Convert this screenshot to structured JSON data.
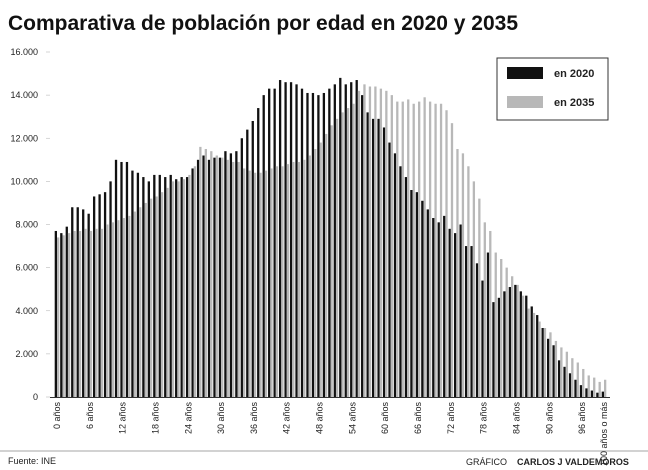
{
  "chart_data": {
    "type": "bar",
    "title": "Comparativa de población por edad en 2020 y 2035",
    "categories": [
      "0 años",
      null,
      null,
      null,
      null,
      null,
      "6 años",
      null,
      null,
      null,
      null,
      null,
      "12 años",
      null,
      null,
      null,
      null,
      null,
      "18 años",
      null,
      null,
      null,
      null,
      null,
      "24 años",
      null,
      null,
      null,
      null,
      null,
      "30 años",
      null,
      null,
      null,
      null,
      null,
      "36 años",
      null,
      null,
      null,
      null,
      null,
      "42 años",
      null,
      null,
      null,
      null,
      null,
      "48 años",
      null,
      null,
      null,
      null,
      null,
      "54 años",
      null,
      null,
      null,
      null,
      null,
      "60 años",
      null,
      null,
      null,
      null,
      null,
      "66 años",
      null,
      null,
      null,
      null,
      null,
      "72 años",
      null,
      null,
      null,
      null,
      null,
      "78 años",
      null,
      null,
      null,
      null,
      null,
      "84 años",
      null,
      null,
      null,
      null,
      null,
      "90 años",
      null,
      null,
      null,
      null,
      null,
      "96 años",
      null,
      null,
      null,
      "100 años o más"
    ],
    "series": [
      {
        "name": "en 2020",
        "color": "#111111",
        "values": [
          7700,
          7600,
          7900,
          8800,
          8800,
          8700,
          8500,
          9300,
          9400,
          9500,
          10000,
          11000,
          10900,
          10900,
          10500,
          10400,
          10200,
          10000,
          10300,
          10300,
          10200,
          10300,
          10100,
          10200,
          10200,
          10600,
          11000,
          11200,
          11000,
          11100,
          11100,
          11400,
          11300,
          11400,
          12000,
          12400,
          12800,
          13400,
          14000,
          14300,
          14300,
          14700,
          14600,
          14600,
          14500,
          14300,
          14100,
          14100,
          14000,
          14100,
          14300,
          14500,
          14800,
          14500,
          14600,
          14700,
          14000,
          13200,
          12900,
          12900,
          12500,
          11800,
          11300,
          10700,
          10200,
          9600,
          9500,
          9100,
          8700,
          8300,
          8100,
          8400,
          7800,
          7600,
          8000,
          7000,
          7000,
          6200,
          5400,
          6700,
          4400,
          4600,
          4900,
          5100,
          5200,
          4900,
          4700,
          4200,
          3800,
          3200,
          2700,
          2400,
          1700,
          1400,
          1100,
          800,
          550,
          400,
          300,
          200,
          250
        ]
      },
      {
        "name": "en 2035",
        "color": "#b8b8b8",
        "values": [
          7400,
          7500,
          7600,
          7700,
          7700,
          7800,
          7700,
          7800,
          7800,
          8000,
          8100,
          8200,
          8300,
          8400,
          8600,
          8800,
          9000,
          9200,
          9300,
          9500,
          9700,
          10000,
          10000,
          10100,
          10300,
          10700,
          11600,
          11500,
          11400,
          11200,
          11100,
          11000,
          10900,
          10900,
          10600,
          10500,
          10400,
          10400,
          10500,
          10600,
          10700,
          10700,
          10800,
          10900,
          10900,
          11000,
          11200,
          11500,
          11800,
          12200,
          12600,
          12900,
          13200,
          13400,
          13600,
          14200,
          14500,
          14400,
          14400,
          14300,
          14200,
          14000,
          13700,
          13700,
          13800,
          13600,
          13700,
          13900,
          13700,
          13600,
          13600,
          13300,
          12700,
          11500,
          11300,
          10700,
          10000,
          9200,
          8100,
          7700,
          6700,
          6400,
          6000,
          5600,
          5200,
          4700,
          4100,
          3900,
          3500,
          3200,
          3000,
          2600,
          2300,
          2100,
          1800,
          1600,
          1300,
          1000,
          900,
          700,
          800
        ]
      }
    ],
    "ylim": [
      0,
      16000
    ],
    "yticks": [
      0,
      {
        "value": 2000,
        "label": "2.000"
      },
      {
        "value": 4000,
        "label": "4.000"
      },
      {
        "value": 6000,
        "label": "6.000"
      },
      {
        "value": 8000,
        "label": "8.000"
      },
      {
        "value": 10000,
        "label": "10.000"
      },
      {
        "value": 12000,
        "label": "12.000"
      },
      {
        "value": 14000,
        "label": "14.000"
      },
      {
        "value": 16000,
        "label": "16.000"
      }
    ],
    "grid": false,
    "legend": "top-right",
    "source": "Fuente: INE",
    "credit_label": "GRÁFICO",
    "credit": "CARLOS J VALDEMOROS"
  }
}
